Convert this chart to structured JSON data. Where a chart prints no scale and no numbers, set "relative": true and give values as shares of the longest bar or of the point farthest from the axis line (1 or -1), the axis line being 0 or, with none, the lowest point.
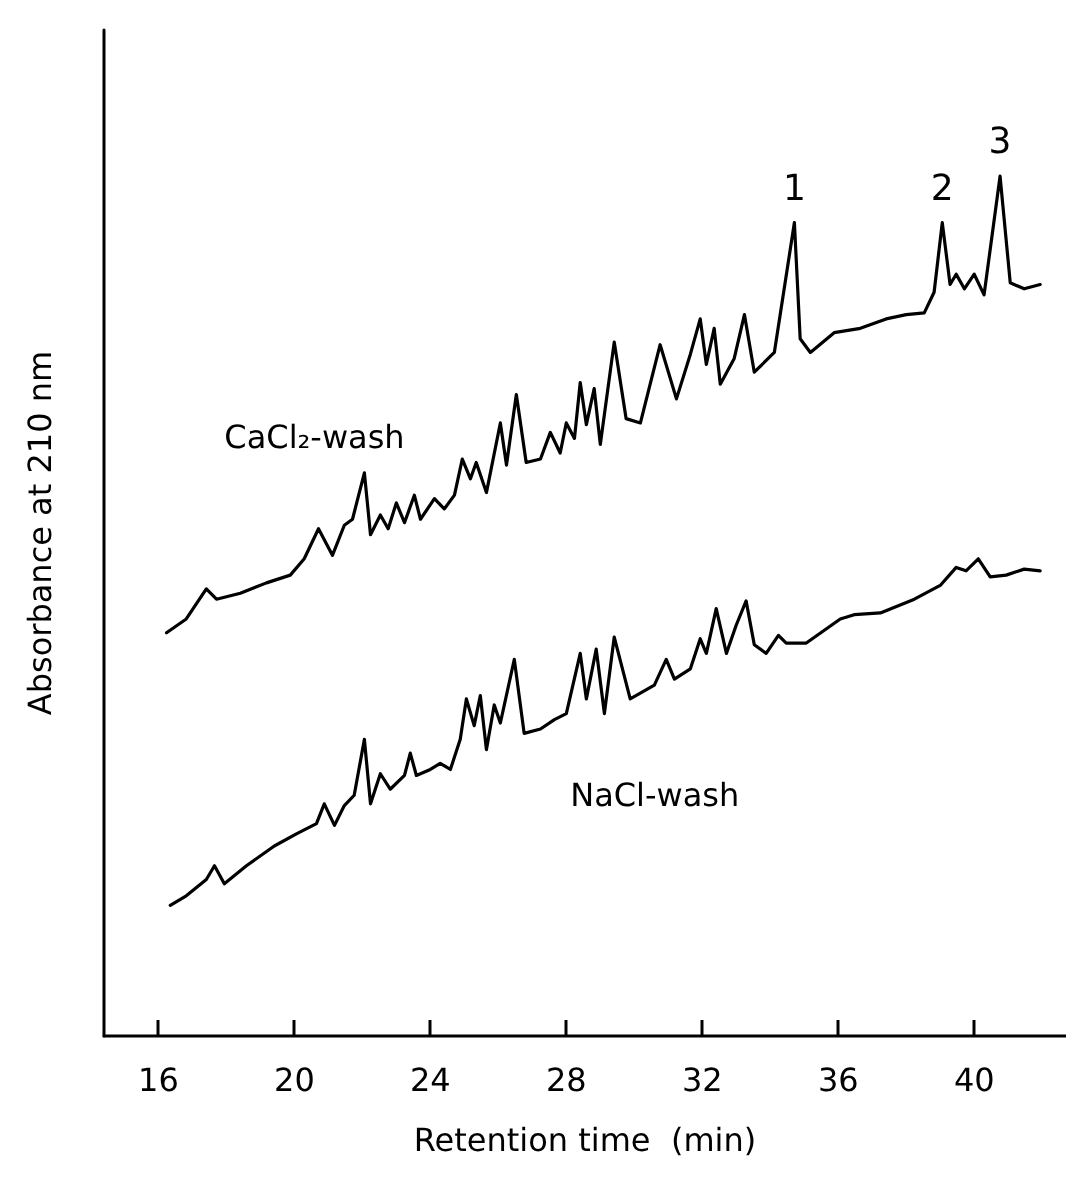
{
  "chart_data": {
    "type": "line",
    "relative": true,
    "xlabel": "Retention time  (min)",
    "ylabel": "Absorbance at 210 nm",
    "xlim": [
      14.4,
      42.7
    ],
    "xticks": [
      16,
      20,
      24,
      28,
      32,
      36,
      40
    ],
    "grid": false,
    "legend": false,
    "marker": "none",
    "line_style": "solid",
    "series": [
      {
        "name": "CaCl₂-wash",
        "color": "#000000",
        "x": [
          16.24,
          16.82,
          17.41,
          17.71,
          18.41,
          19.18,
          19.88,
          20.29,
          20.71,
          21.12,
          21.47,
          21.71,
          22.06,
          22.24,
          22.53,
          22.76,
          23.0,
          23.24,
          23.53,
          23.71,
          24.12,
          24.41,
          24.71,
          24.94,
          25.18,
          25.35,
          25.65,
          26.06,
          26.24,
          26.53,
          26.82,
          27.24,
          27.53,
          27.82,
          28.0,
          28.24,
          28.41,
          28.59,
          28.82,
          29.0,
          29.41,
          29.76,
          30.18,
          30.76,
          31.24,
          31.65,
          31.94,
          32.12,
          32.35,
          32.53,
          32.94,
          33.24,
          33.53,
          34.12,
          34.71,
          34.88,
          35.18,
          35.88,
          36.65,
          37.41,
          38.0,
          38.53,
          38.82,
          39.06,
          39.29,
          39.47,
          39.71,
          40.0,
          40.29,
          40.76,
          41.06,
          41.47,
          41.94
        ],
        "values": [
          0.469,
          0.485,
          0.52,
          0.508,
          0.515,
          0.527,
          0.536,
          0.555,
          0.59,
          0.559,
          0.594,
          0.601,
          0.655,
          0.583,
          0.606,
          0.59,
          0.62,
          0.597,
          0.629,
          0.601,
          0.625,
          0.613,
          0.629,
          0.671,
          0.648,
          0.667,
          0.632,
          0.713,
          0.664,
          0.746,
          0.667,
          0.671,
          0.702,
          0.678,
          0.713,
          0.695,
          0.76,
          0.711,
          0.753,
          0.688,
          0.807,
          0.718,
          0.713,
          0.804,
          0.741,
          0.793,
          0.834,
          0.781,
          0.823,
          0.758,
          0.788,
          0.839,
          0.772,
          0.795,
          0.946,
          0.811,
          0.795,
          0.818,
          0.823,
          0.834,
          0.839,
          0.841,
          0.865,
          0.946,
          0.874,
          0.886,
          0.869,
          0.886,
          0.862,
          1.0,
          0.876,
          0.869,
          0.874
        ]
      },
      {
        "name": "NaCl-wash",
        "color": "#000000",
        "x": [
          16.35,
          16.82,
          17.41,
          17.65,
          17.94,
          18.59,
          19.41,
          20.06,
          20.65,
          20.88,
          21.18,
          21.47,
          21.76,
          22.06,
          22.24,
          22.53,
          22.82,
          23.24,
          23.41,
          23.59,
          24.0,
          24.29,
          24.59,
          24.88,
          25.06,
          25.29,
          25.47,
          25.65,
          25.88,
          26.06,
          26.47,
          26.76,
          27.24,
          27.65,
          28.0,
          28.41,
          28.59,
          28.88,
          29.12,
          29.41,
          29.88,
          30.59,
          30.94,
          31.18,
          31.65,
          31.94,
          32.12,
          32.41,
          32.71,
          33.0,
          33.29,
          33.53,
          33.88,
          34.24,
          34.47,
          35.06,
          36.06,
          36.47,
          37.24,
          38.24,
          39.0,
          39.47,
          39.76,
          40.12,
          40.47,
          40.94,
          41.47,
          41.94
        ],
        "values": [
          0.152,
          0.163,
          0.182,
          0.198,
          0.177,
          0.198,
          0.221,
          0.235,
          0.247,
          0.27,
          0.245,
          0.268,
          0.28,
          0.345,
          0.27,
          0.305,
          0.287,
          0.303,
          0.329,
          0.303,
          0.31,
          0.317,
          0.31,
          0.345,
          0.392,
          0.361,
          0.396,
          0.333,
          0.385,
          0.364,
          0.438,
          0.352,
          0.357,
          0.368,
          0.375,
          0.445,
          0.392,
          0.45,
          0.375,
          0.464,
          0.392,
          0.408,
          0.438,
          0.415,
          0.427,
          0.462,
          0.445,
          0.497,
          0.445,
          0.478,
          0.506,
          0.455,
          0.445,
          0.466,
          0.457,
          0.457,
          0.485,
          0.49,
          0.492,
          0.508,
          0.524,
          0.545,
          0.541,
          0.555,
          0.534,
          0.536,
          0.543,
          0.541
        ]
      }
    ],
    "annotations": [
      {
        "text": "1",
        "x": 34.71,
        "y": 0.946
      },
      {
        "text": "2",
        "x": 39.06,
        "y": 0.946
      },
      {
        "text": "3",
        "x": 40.76,
        "y": 1.0
      }
    ]
  }
}
